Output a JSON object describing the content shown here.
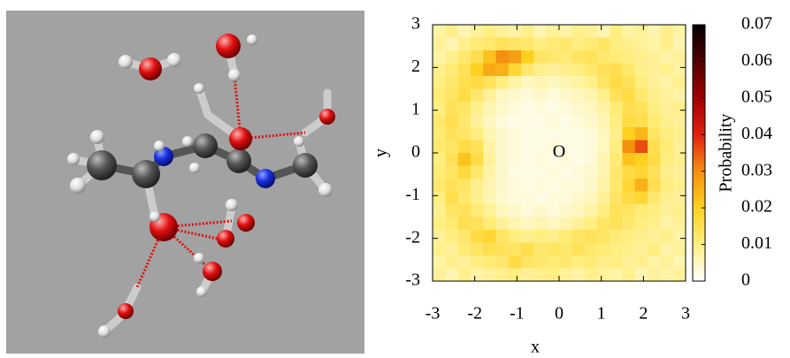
{
  "chart_data": {
    "type": "heatmap",
    "xlabel": "x",
    "ylabel": "y",
    "annotation": "O",
    "colorbar_label": "Probability",
    "xlim": [
      -3,
      3
    ],
    "ylim": [
      -3,
      3
    ],
    "xticks": [
      -3,
      -2,
      -1,
      0,
      1,
      2,
      3
    ],
    "yticks": [
      -3,
      -2,
      -1,
      0,
      1,
      2,
      3
    ],
    "zlim": [
      0,
      0.07
    ],
    "zticks": [
      0,
      0.01,
      0.02,
      0.03,
      0.04,
      0.05,
      0.06,
      0.07
    ],
    "colormap": [
      "#ffffff",
      "#ffee80",
      "#ffd020",
      "#f39010",
      "#e02010",
      "#a00000",
      "#500000",
      "#000000"
    ],
    "xbins": [
      -3,
      -2.7,
      -2.4,
      -2.1,
      -1.8,
      -1.5,
      -1.2,
      -0.9,
      -0.6,
      -0.3,
      0,
      0.3,
      0.6,
      0.9,
      1.2,
      1.5,
      1.8,
      2.1,
      2.4,
      2.7,
      3
    ],
    "ybins": [
      3,
      2.7,
      2.4,
      2.1,
      1.8,
      1.5,
      1.2,
      0.9,
      0.6,
      0.3,
      0,
      -0.3,
      -0.6,
      -0.9,
      -1.2,
      -1.5,
      -1.8,
      -2.1,
      -2.4,
      -2.7,
      -3
    ],
    "values": [
      [
        0.007,
        0.009,
        0.006,
        0.008,
        0.01,
        0.008,
        0.007,
        0.009,
        0.006,
        0.008,
        0.007,
        0.009,
        0.008,
        0.006,
        0.01,
        0.007,
        0.008,
        0.006,
        0.009,
        0.007
      ],
      [
        0.008,
        0.006,
        0.009,
        0.011,
        0.012,
        0.014,
        0.013,
        0.012,
        0.01,
        0.011,
        0.012,
        0.01,
        0.011,
        0.013,
        0.01,
        0.009,
        0.008,
        0.007,
        0.009,
        0.006
      ],
      [
        0.007,
        0.009,
        0.012,
        0.015,
        0.022,
        0.03,
        0.028,
        0.02,
        0.013,
        0.012,
        0.011,
        0.013,
        0.014,
        0.012,
        0.011,
        0.01,
        0.009,
        0.008,
        0.007,
        0.008
      ],
      [
        0.009,
        0.011,
        0.014,
        0.02,
        0.026,
        0.025,
        0.018,
        0.012,
        0.009,
        0.008,
        0.009,
        0.01,
        0.012,
        0.014,
        0.015,
        0.012,
        0.009,
        0.008,
        0.009,
        0.007
      ],
      [
        0.01,
        0.012,
        0.015,
        0.016,
        0.014,
        0.01,
        0.007,
        0.005,
        0.006,
        0.005,
        0.006,
        0.007,
        0.009,
        0.013,
        0.016,
        0.014,
        0.01,
        0.008,
        0.007,
        0.009
      ],
      [
        0.011,
        0.013,
        0.016,
        0.012,
        0.008,
        0.005,
        0.004,
        0.003,
        0.004,
        0.003,
        0.004,
        0.005,
        0.006,
        0.009,
        0.014,
        0.016,
        0.012,
        0.009,
        0.008,
        0.007
      ],
      [
        0.01,
        0.014,
        0.013,
        0.009,
        0.006,
        0.004,
        0.003,
        0.002,
        0.003,
        0.002,
        0.003,
        0.004,
        0.005,
        0.007,
        0.011,
        0.015,
        0.014,
        0.01,
        0.008,
        0.009
      ],
      [
        0.012,
        0.015,
        0.012,
        0.008,
        0.005,
        0.003,
        0.002,
        0.002,
        0.002,
        0.003,
        0.002,
        0.003,
        0.004,
        0.006,
        0.01,
        0.016,
        0.015,
        0.011,
        0.009,
        0.008
      ],
      [
        0.011,
        0.014,
        0.013,
        0.01,
        0.006,
        0.004,
        0.003,
        0.002,
        0.002,
        0.002,
        0.002,
        0.002,
        0.003,
        0.005,
        0.009,
        0.02,
        0.024,
        0.013,
        0.01,
        0.009
      ],
      [
        0.012,
        0.013,
        0.016,
        0.014,
        0.007,
        0.004,
        0.003,
        0.002,
        0.002,
        0.003,
        0.002,
        0.002,
        0.003,
        0.005,
        0.01,
        0.03,
        0.036,
        0.015,
        0.011,
        0.008
      ],
      [
        0.01,
        0.014,
        0.022,
        0.016,
        0.008,
        0.004,
        0.003,
        0.002,
        0.003,
        0.002,
        0.003,
        0.002,
        0.003,
        0.006,
        0.011,
        0.022,
        0.02,
        0.016,
        0.01,
        0.009
      ],
      [
        0.011,
        0.013,
        0.017,
        0.012,
        0.007,
        0.004,
        0.002,
        0.002,
        0.002,
        0.003,
        0.002,
        0.003,
        0.004,
        0.006,
        0.012,
        0.016,
        0.018,
        0.014,
        0.009,
        0.008
      ],
      [
        0.012,
        0.014,
        0.013,
        0.009,
        0.006,
        0.004,
        0.003,
        0.002,
        0.003,
        0.002,
        0.003,
        0.003,
        0.004,
        0.007,
        0.012,
        0.018,
        0.025,
        0.015,
        0.01,
        0.009
      ],
      [
        0.01,
        0.015,
        0.012,
        0.009,
        0.006,
        0.004,
        0.003,
        0.003,
        0.002,
        0.003,
        0.003,
        0.004,
        0.005,
        0.008,
        0.013,
        0.016,
        0.018,
        0.012,
        0.009,
        0.008
      ],
      [
        0.009,
        0.013,
        0.014,
        0.011,
        0.008,
        0.005,
        0.004,
        0.003,
        0.004,
        0.003,
        0.004,
        0.005,
        0.007,
        0.01,
        0.014,
        0.013,
        0.011,
        0.01,
        0.008,
        0.009
      ],
      [
        0.01,
        0.011,
        0.015,
        0.014,
        0.011,
        0.008,
        0.006,
        0.005,
        0.006,
        0.005,
        0.006,
        0.008,
        0.01,
        0.013,
        0.014,
        0.012,
        0.01,
        0.009,
        0.007,
        0.008
      ],
      [
        0.008,
        0.01,
        0.012,
        0.016,
        0.018,
        0.013,
        0.01,
        0.009,
        0.01,
        0.009,
        0.011,
        0.013,
        0.014,
        0.013,
        0.011,
        0.01,
        0.009,
        0.008,
        0.009,
        0.007
      ],
      [
        0.009,
        0.008,
        0.011,
        0.013,
        0.015,
        0.014,
        0.013,
        0.015,
        0.012,
        0.013,
        0.012,
        0.014,
        0.012,
        0.011,
        0.01,
        0.009,
        0.008,
        0.01,
        0.007,
        0.008
      ],
      [
        0.007,
        0.009,
        0.008,
        0.01,
        0.011,
        0.012,
        0.016,
        0.013,
        0.012,
        0.011,
        0.012,
        0.01,
        0.011,
        0.009,
        0.01,
        0.008,
        0.009,
        0.007,
        0.008,
        0.006
      ],
      [
        0.008,
        0.006,
        0.009,
        0.007,
        0.008,
        0.009,
        0.01,
        0.008,
        0.009,
        0.01,
        0.008,
        0.007,
        0.009,
        0.008,
        0.007,
        0.009,
        0.006,
        0.008,
        0.007,
        0.008
      ]
    ]
  }
}
